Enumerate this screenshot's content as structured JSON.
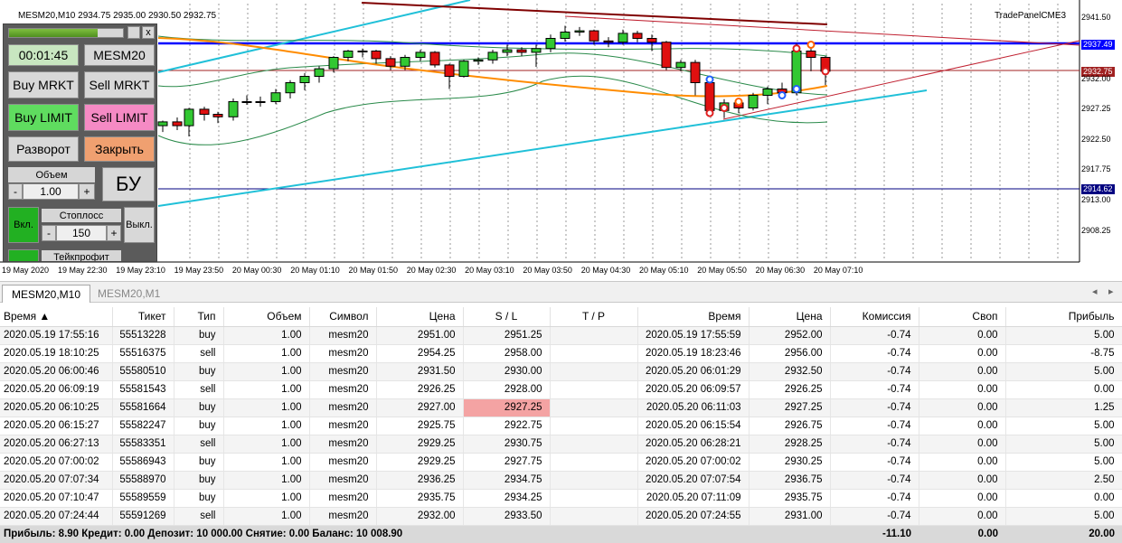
{
  "chart": {
    "symbol": "MESM20,M10",
    "ohlc": "2934.75 2935.00 2930.50 2932.75",
    "panel_name": "TradePanelCME3",
    "price_labels": [
      "2941.50",
      "2937.49",
      "2932.75",
      "2932.00",
      "2927.25",
      "2922.50",
      "2917.75",
      "2914.62",
      "2913.00",
      "2908.25"
    ],
    "time_labels": [
      "19 May 2020",
      "19 May 22:30",
      "19 May 23:10",
      "19 May 23:50",
      "20 May 00:30",
      "20 May 01:10",
      "20 May 01:50",
      "20 May 02:30",
      "20 May 03:10",
      "20 May 03:50",
      "20 May 04:30",
      "20 May 05:10",
      "20 May 05:50",
      "20 May 06:30",
      "20 May 07:10"
    ],
    "colors": {
      "bull": "#32c832",
      "bear": "#e01010",
      "blue_line": "#0000ff",
      "cyan_line": "#20c0d8",
      "orange_line": "#ff8c00",
      "dark_red": "#800000"
    }
  },
  "panel": {
    "progress_pct": 78,
    "timer": "00:01:45",
    "symbol": "MESM20",
    "buy_market": "Buy MRKT",
    "sell_market": "Sell MRKT",
    "buy_limit": "Buy LIMIT",
    "sell_limit": "Sell LIMIT",
    "reverse": "Разворот",
    "close": "Закрыть",
    "volume_label": "Объем",
    "volume_value": "1.00",
    "minus": "-",
    "plus": "+",
    "breakeven": "БУ",
    "on": "Вкл.",
    "off": "Выкл.",
    "stoploss_label": "Стоплосс",
    "stoploss_value": "150",
    "takeprofit_label": "Тейкпрофит",
    "close_x": "x"
  },
  "tabs": [
    {
      "label": "MESM20,M10",
      "active": true
    },
    {
      "label": "MESM20,M1",
      "active": false
    }
  ],
  "table": {
    "headers": [
      "Время",
      "Тикет",
      "Тип",
      "Объем",
      "Символ",
      "Цена",
      "S / L",
      "T / P",
      "Время",
      "Цена",
      "Комиссия",
      "Своп",
      "Прибыль"
    ],
    "rows": [
      [
        "2020.05.19 17:55:16",
        "55513228",
        "buy",
        "1.00",
        "mesm20",
        "2951.00",
        "2951.25",
        "",
        "2020.05.19 17:55:59",
        "2952.00",
        "-0.74",
        "0.00",
        "5.00"
      ],
      [
        "2020.05.19 18:10:25",
        "55516375",
        "sell",
        "1.00",
        "mesm20",
        "2954.25",
        "2958.00",
        "",
        "2020.05.19 18:23:46",
        "2956.00",
        "-0.74",
        "0.00",
        "-8.75"
      ],
      [
        "2020.05.20 06:00:46",
        "55580510",
        "buy",
        "1.00",
        "mesm20",
        "2931.50",
        "2930.00",
        "",
        "2020.05.20 06:01:29",
        "2932.50",
        "-0.74",
        "0.00",
        "5.00"
      ],
      [
        "2020.05.20 06:09:19",
        "55581543",
        "sell",
        "1.00",
        "mesm20",
        "2926.25",
        "2928.00",
        "",
        "2020.05.20 06:09:57",
        "2926.25",
        "-0.74",
        "0.00",
        "0.00"
      ],
      [
        "2020.05.20 06:10:25",
        "55581664",
        "buy",
        "1.00",
        "mesm20",
        "2927.00",
        "2927.25",
        "",
        "2020.05.20 06:11:03",
        "2927.25",
        "-0.74",
        "0.00",
        "1.25"
      ],
      [
        "2020.05.20 06:15:27",
        "55582247",
        "buy",
        "1.00",
        "mesm20",
        "2925.75",
        "2922.75",
        "",
        "2020.05.20 06:15:54",
        "2926.75",
        "-0.74",
        "0.00",
        "5.00"
      ],
      [
        "2020.05.20 06:27:13",
        "55583351",
        "sell",
        "1.00",
        "mesm20",
        "2929.25",
        "2930.75",
        "",
        "2020.05.20 06:28:21",
        "2928.25",
        "-0.74",
        "0.00",
        "5.00"
      ],
      [
        "2020.05.20 07:00:02",
        "55586943",
        "buy",
        "1.00",
        "mesm20",
        "2929.25",
        "2927.75",
        "",
        "2020.05.20 07:00:02",
        "2930.25",
        "-0.74",
        "0.00",
        "5.00"
      ],
      [
        "2020.05.20 07:07:34",
        "55588970",
        "buy",
        "1.00",
        "mesm20",
        "2936.25",
        "2934.75",
        "",
        "2020.05.20 07:07:54",
        "2936.75",
        "-0.74",
        "0.00",
        "2.50"
      ],
      [
        "2020.05.20 07:10:47",
        "55589559",
        "buy",
        "1.00",
        "mesm20",
        "2935.75",
        "2934.25",
        "",
        "2020.05.20 07:11:09",
        "2935.75",
        "-0.74",
        "0.00",
        "0.00"
      ],
      [
        "2020.05.20 07:24:44",
        "55591269",
        "sell",
        "1.00",
        "mesm20",
        "2932.00",
        "2933.50",
        "",
        "2020.05.20 07:24:55",
        "2931.00",
        "-0.74",
        "0.00",
        "5.00"
      ]
    ],
    "highlight_cell": {
      "row": 4,
      "col": 6
    },
    "summary": {
      "text": "Прибыль: 8.90  Кредит: 0.00  Депозит: 10 000.00  Снятие: 0.00  Баланс: 10 008.90",
      "commission": "-11.10",
      "swap": "0.00",
      "profit": "20.00"
    }
  }
}
